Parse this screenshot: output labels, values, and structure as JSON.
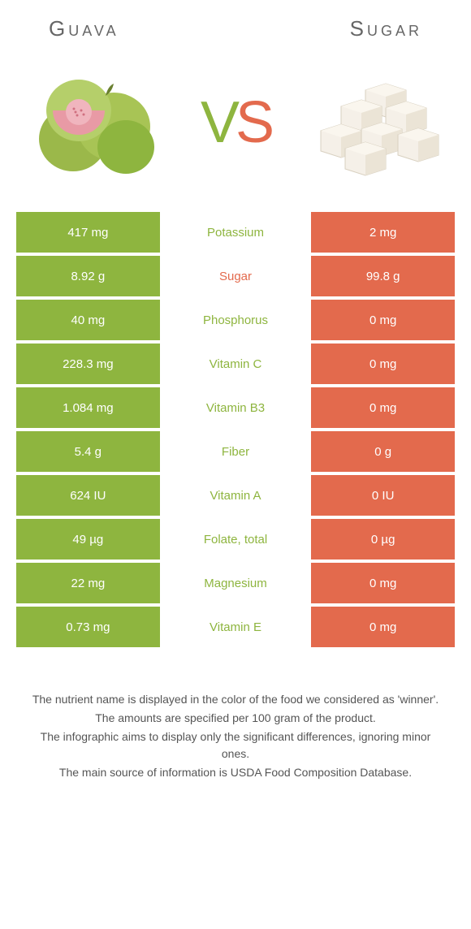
{
  "header": {
    "left": "Guava",
    "right": "Sugar"
  },
  "vs": {
    "v": "V",
    "s": "S"
  },
  "colors": {
    "left": "#8eb53f",
    "right": "#e36a4d",
    "text": "#555555",
    "bg": "#ffffff"
  },
  "rows": [
    {
      "left": "417 mg",
      "label": "Potassium",
      "right": "2 mg",
      "winner": "left"
    },
    {
      "left": "8.92 g",
      "label": "Sugar",
      "right": "99.8 g",
      "winner": "right"
    },
    {
      "left": "40 mg",
      "label": "Phosphorus",
      "right": "0 mg",
      "winner": "left"
    },
    {
      "left": "228.3 mg",
      "label": "Vitamin C",
      "right": "0 mg",
      "winner": "left"
    },
    {
      "left": "1.084 mg",
      "label": "Vitamin B3",
      "right": "0 mg",
      "winner": "left"
    },
    {
      "left": "5.4 g",
      "label": "Fiber",
      "right": "0 g",
      "winner": "left"
    },
    {
      "left": "624 IU",
      "label": "Vitamin A",
      "right": "0 IU",
      "winner": "left"
    },
    {
      "left": "49 µg",
      "label": "Folate, total",
      "right": "0 µg",
      "winner": "left"
    },
    {
      "left": "22 mg",
      "label": "Magnesium",
      "right": "0 mg",
      "winner": "left"
    },
    {
      "left": "0.73 mg",
      "label": "Vitamin E",
      "right": "0 mg",
      "winner": "left"
    }
  ],
  "footer": {
    "l1": "The nutrient name is displayed in the color of the food we considered as 'winner'.",
    "l2": "The amounts are specified per 100 gram of the product.",
    "l3": "The infographic aims to display only the significant differences, ignoring minor ones.",
    "l4": "The main source of information is USDA Food Composition Database."
  }
}
